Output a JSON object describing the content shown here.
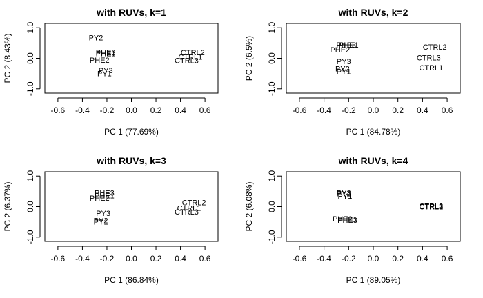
{
  "chart_data": [
    {
      "type": "scatter",
      "title": "with RUVs, k=1",
      "xlabel": "PC 1 (77.69%)",
      "ylabel": "PC 2 (8.43%)",
      "xlim": [
        -0.65,
        0.65
      ],
      "ylim": [
        -1.05,
        1.05
      ],
      "xticks": [
        "-0.6",
        "-0.4",
        "-0.2",
        "0.0",
        "0.2",
        "0.4",
        "0.6"
      ],
      "xtick_values": [
        -0.6,
        -0.4,
        -0.2,
        0.0,
        0.2,
        0.4,
        0.6
      ],
      "yticks": [
        "-1.0",
        "0.0",
        "1.0"
      ],
      "ytick_values": [
        -1.0,
        0.0,
        1.0
      ],
      "grid": false,
      "points": [
        {
          "label": "PY2",
          "x": -0.29,
          "y": 0.68
        },
        {
          "label": "PHE3",
          "x": -0.21,
          "y": 0.19
        },
        {
          "label": "PHE1",
          "x": -0.21,
          "y": 0.16
        },
        {
          "label": "PHE2",
          "x": -0.26,
          "y": -0.06
        },
        {
          "label": "PY3",
          "x": -0.21,
          "y": -0.39
        },
        {
          "label": "PY1",
          "x": -0.22,
          "y": -0.5
        },
        {
          "label": "CTRL2",
          "x": 0.5,
          "y": 0.19
        },
        {
          "label": "CTRL1",
          "x": 0.48,
          "y": 0.05
        },
        {
          "label": "CTRL3",
          "x": 0.45,
          "y": -0.07
        }
      ]
    },
    {
      "type": "scatter",
      "title": "with RUVs, k=2",
      "xlabel": "PC 1 (84.78%)",
      "ylabel": "PC 2 (6.5%)",
      "xlim": [
        -0.65,
        0.65
      ],
      "ylim": [
        -1.05,
        1.05
      ],
      "xticks": [
        "-0.6",
        "-0.4",
        "-0.2",
        "0.0",
        "0.2",
        "0.4",
        "0.6"
      ],
      "xtick_values": [
        -0.6,
        -0.4,
        -0.2,
        0.0,
        0.2,
        0.4,
        0.6
      ],
      "yticks": [
        "-1.0",
        "0.0",
        "1.0"
      ],
      "ytick_values": [
        -1.0,
        0.0,
        1.0
      ],
      "grid": false,
      "points": [
        {
          "label": "PHE3",
          "x": -0.22,
          "y": 0.44
        },
        {
          "label": "PHE1",
          "x": -0.2,
          "y": 0.44
        },
        {
          "label": "PHE2",
          "x": -0.27,
          "y": 0.28
        },
        {
          "label": "PY3",
          "x": -0.24,
          "y": -0.1
        },
        {
          "label": "PY2",
          "x": -0.25,
          "y": -0.34
        },
        {
          "label": "PY1",
          "x": -0.24,
          "y": -0.43
        },
        {
          "label": "CTRL2",
          "x": 0.5,
          "y": 0.37
        },
        {
          "label": "CTRL3",
          "x": 0.45,
          "y": 0.02
        },
        {
          "label": "CTRL1",
          "x": 0.47,
          "y": -0.3
        }
      ]
    },
    {
      "type": "scatter",
      "title": "with RUVs, k=3",
      "xlabel": "PC 1 (86.84%)",
      "ylabel": "PC 2 (6.37%)",
      "xlim": [
        -0.65,
        0.65
      ],
      "ylim": [
        -1.05,
        1.05
      ],
      "xticks": [
        "-0.6",
        "-0.4",
        "-0.2",
        "0.0",
        "0.2",
        "0.4",
        "0.6"
      ],
      "xtick_values": [
        -0.6,
        -0.4,
        -0.2,
        0.0,
        0.2,
        0.4,
        0.6
      ],
      "yticks": [
        "-1.0",
        "0.0",
        "1.0"
      ],
      "ytick_values": [
        -1.0,
        0.0,
        1.0
      ],
      "grid": false,
      "points": [
        {
          "label": "PHE3",
          "x": -0.22,
          "y": 0.45
        },
        {
          "label": "PHE1",
          "x": -0.22,
          "y": 0.36
        },
        {
          "label": "PHE2",
          "x": -0.26,
          "y": 0.28
        },
        {
          "label": "PY3",
          "x": -0.23,
          "y": -0.21
        },
        {
          "label": "PY2",
          "x": -0.25,
          "y": -0.45
        },
        {
          "label": "PY1",
          "x": -0.25,
          "y": -0.5
        },
        {
          "label": "CTRL2",
          "x": 0.51,
          "y": 0.14
        },
        {
          "label": "CTRL1",
          "x": 0.47,
          "y": -0.05
        },
        {
          "label": "CTRL3",
          "x": 0.45,
          "y": -0.17
        }
      ]
    },
    {
      "type": "scatter",
      "title": "with RUVs, k=4",
      "xlabel": "PC 1 (89.05%)",
      "ylabel": "PC 2 (6.08%)",
      "xlim": [
        -0.65,
        0.65
      ],
      "ylim": [
        -1.05,
        1.05
      ],
      "xticks": [
        "-0.6",
        "-0.4",
        "-0.2",
        "0.0",
        "0.2",
        "0.4",
        "0.6"
      ],
      "xtick_values": [
        -0.6,
        -0.4,
        -0.2,
        0.0,
        0.2,
        0.4,
        0.6
      ],
      "yticks": [
        "-1.0",
        "0.0",
        "1.0"
      ],
      "ytick_values": [
        -1.0,
        0.0,
        1.0
      ],
      "grid": false,
      "points": [
        {
          "label": "PY3",
          "x": -0.24,
          "y": 0.45
        },
        {
          "label": "PY2",
          "x": -0.24,
          "y": 0.43
        },
        {
          "label": "PY1",
          "x": -0.23,
          "y": 0.35
        },
        {
          "label": "CTRL3",
          "x": 0.47,
          "y": 0.02
        },
        {
          "label": "CTRL2",
          "x": 0.47,
          "y": 0.01
        },
        {
          "label": "CTRL1",
          "x": 0.47,
          "y": 0.0
        },
        {
          "label": "PHE2",
          "x": -0.25,
          "y": -0.4
        },
        {
          "label": "PHE1",
          "x": -0.21,
          "y": -0.41
        },
        {
          "label": "PHE3",
          "x": -0.21,
          "y": -0.44
        }
      ]
    }
  ]
}
